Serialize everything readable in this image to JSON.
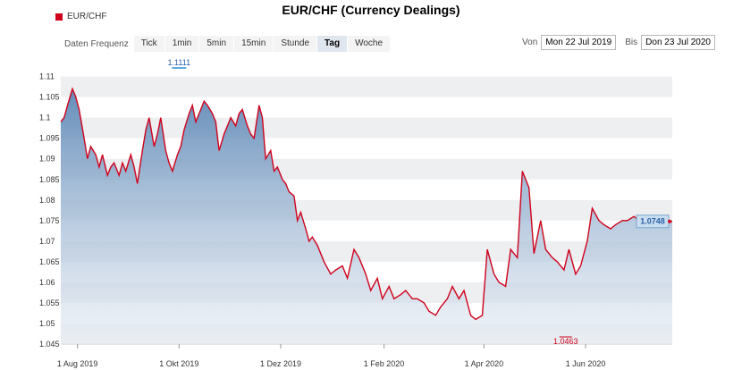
{
  "header": {
    "title": "EUR/CHF (Currency Dealings)",
    "legend_label": "EUR/CHF"
  },
  "toolbar": {
    "frequency_label": "Daten Frequenz",
    "frequencies": [
      {
        "label": "Tick",
        "active": false
      },
      {
        "label": "1min",
        "active": false
      },
      {
        "label": "5min",
        "active": false
      },
      {
        "label": "15min",
        "active": false
      },
      {
        "label": "Stunde",
        "active": false
      },
      {
        "label": "Tag",
        "active": true
      },
      {
        "label": "Woche",
        "active": false
      }
    ],
    "from_label": "Von",
    "from_date": "Mon 22 Jul 2019",
    "to_label": "Bis",
    "to_date": "Don 23 Jul 2020"
  },
  "chart_data": {
    "type": "area",
    "title": "EUR/CHF (Currency Dealings)",
    "series": [
      {
        "name": "EUR/CHF",
        "color": "#d0021b",
        "fill_top": "#5b86b5",
        "fill_bottom": "#e8eef5",
        "x": [
          "2019-07-22",
          "2019-07-24",
          "2019-07-26",
          "2019-07-29",
          "2019-07-31",
          "2019-08-02",
          "2019-08-05",
          "2019-08-07",
          "2019-08-09",
          "2019-08-12",
          "2019-08-14",
          "2019-08-16",
          "2019-08-19",
          "2019-08-21",
          "2019-08-23",
          "2019-08-26",
          "2019-08-28",
          "2019-08-30",
          "2019-09-02",
          "2019-09-04",
          "2019-09-06",
          "2019-09-09",
          "2019-09-11",
          "2019-09-13",
          "2019-09-16",
          "2019-09-18",
          "2019-09-20",
          "2019-09-23",
          "2019-09-25",
          "2019-09-27",
          "2019-09-30",
          "2019-10-02",
          "2019-10-04",
          "2019-10-07",
          "2019-10-09",
          "2019-10-11",
          "2019-10-14",
          "2019-10-16",
          "2019-10-18",
          "2019-10-21",
          "2019-10-23",
          "2019-10-25",
          "2019-10-28",
          "2019-10-30",
          "2019-11-01",
          "2019-11-04",
          "2019-11-06",
          "2019-11-08",
          "2019-11-11",
          "2019-11-13",
          "2019-11-15",
          "2019-11-18",
          "2019-11-20",
          "2019-11-22",
          "2019-11-25",
          "2019-11-27",
          "2019-11-29",
          "2019-12-02",
          "2019-12-04",
          "2019-12-06",
          "2019-12-09",
          "2019-12-11",
          "2019-12-13",
          "2019-12-16",
          "2019-12-18",
          "2019-12-20",
          "2019-12-23",
          "2019-12-27",
          "2019-12-31",
          "2020-01-03",
          "2020-01-07",
          "2020-01-10",
          "2020-01-14",
          "2020-01-17",
          "2020-01-21",
          "2020-01-24",
          "2020-01-28",
          "2020-01-31",
          "2020-02-04",
          "2020-02-07",
          "2020-02-11",
          "2020-02-14",
          "2020-02-18",
          "2020-02-21",
          "2020-02-25",
          "2020-02-28",
          "2020-03-03",
          "2020-03-06",
          "2020-03-10",
          "2020-03-13",
          "2020-03-17",
          "2020-03-20",
          "2020-03-24",
          "2020-03-27",
          "2020-03-31",
          "2020-04-03",
          "2020-04-07",
          "2020-04-10",
          "2020-04-14",
          "2020-04-17",
          "2020-04-21",
          "2020-04-24",
          "2020-04-28",
          "2020-05-01",
          "2020-05-05",
          "2020-05-08",
          "2020-05-12",
          "2020-05-15",
          "2020-05-19",
          "2020-05-22",
          "2020-05-26",
          "2020-05-29",
          "2020-06-02",
          "2020-06-05",
          "2020-06-09",
          "2020-06-12",
          "2020-06-16",
          "2020-06-19",
          "2020-06-23",
          "2020-06-26",
          "2020-06-30",
          "2020-07-03",
          "2020-07-07",
          "2020-07-10",
          "2020-07-14",
          "2020-07-17",
          "2020-07-21",
          "2020-07-23"
        ],
        "values": [
          1.099,
          1.1,
          1.103,
          1.107,
          1.105,
          1.102,
          1.095,
          1.09,
          1.093,
          1.091,
          1.088,
          1.091,
          1.086,
          1.088,
          1.089,
          1.086,
          1.089,
          1.087,
          1.091,
          1.088,
          1.084,
          1.092,
          1.097,
          1.1,
          1.093,
          1.096,
          1.1,
          1.092,
          1.089,
          1.087,
          1.091,
          1.093,
          1.097,
          1.101,
          1.103,
          1.099,
          1.102,
          1.104,
          1.103,
          1.101,
          1.099,
          1.092,
          1.096,
          1.098,
          1.1,
          1.098,
          1.101,
          1.102,
          1.098,
          1.096,
          1.095,
          1.103,
          1.1,
          1.09,
          1.092,
          1.087,
          1.088,
          1.085,
          1.084,
          1.082,
          1.081,
          1.075,
          1.077,
          1.073,
          1.07,
          1.071,
          1.069,
          1.065,
          1.062,
          1.063,
          1.064,
          1.061,
          1.068,
          1.066,
          1.062,
          1.058,
          1.061,
          1.056,
          1.059,
          1.056,
          1.057,
          1.058,
          1.056,
          1.056,
          1.055,
          1.053,
          1.052,
          1.054,
          1.056,
          1.059,
          1.056,
          1.058,
          1.052,
          1.051,
          1.052,
          1.068,
          1.062,
          1.06,
          1.059,
          1.068,
          1.066,
          1.087,
          1.083,
          1.067,
          1.075,
          1.068,
          1.066,
          1.065,
          1.063,
          1.068,
          1.062,
          1.064,
          1.07,
          1.078,
          1.075,
          1.074,
          1.073,
          1.074,
          1.075,
          1.075,
          1.076,
          1.075,
          1.0748,
          1.0748,
          1.0748,
          1.0748,
          1.0748,
          1.0748
        ],
        "last_value": "1.0748"
      }
    ],
    "xlabel": "",
    "ylabel": "",
    "ylim": [
      1.045,
      1.111
    ],
    "y_ticks": [
      "1.045",
      "1.05",
      "1.055",
      "1.06",
      "1.065",
      "1.07",
      "1.075",
      "1.08",
      "1.085",
      "1.09",
      "1.095",
      "1.1",
      "1.105",
      "1.11"
    ],
    "x_ticks": [
      {
        "date": "2019-08-01",
        "label": "1 Aug 2019"
      },
      {
        "date": "2019-10-01",
        "label": "1 Okt 2019"
      },
      {
        "date": "2019-12-01",
        "label": "1 Dez 2019"
      },
      {
        "date": "2020-02-01",
        "label": "1 Feb 2020"
      },
      {
        "date": "2020-04-01",
        "label": "1 Apr 2020"
      },
      {
        "date": "2020-06-01",
        "label": "1 Jun 2020"
      }
    ],
    "annotations": {
      "max_label": "1.1111",
      "max_date": "2019-10-01",
      "min_label": "1.0463",
      "min_date": "2020-05-20"
    },
    "grid": true
  }
}
